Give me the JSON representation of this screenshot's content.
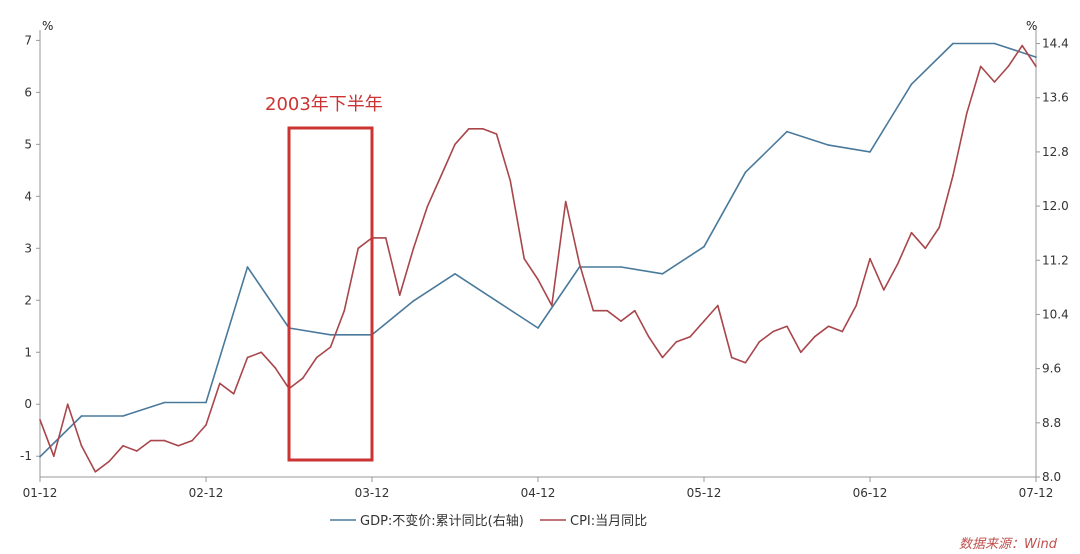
{
  "chart_data": {
    "type": "line",
    "x": [
      "01-12",
      "02-01",
      "02-02",
      "02-03",
      "02-04",
      "02-05",
      "02-06",
      "02-07",
      "02-08",
      "02-09",
      "02-10",
      "02-11",
      "02-12",
      "03-01",
      "03-02",
      "03-03",
      "03-04",
      "03-05",
      "03-06",
      "03-07",
      "03-08",
      "03-09",
      "03-10",
      "03-11",
      "03-12",
      "04-01",
      "04-02",
      "04-03",
      "04-04",
      "04-05",
      "04-06",
      "04-07",
      "04-08",
      "04-09",
      "04-10",
      "04-11",
      "04-12",
      "05-01",
      "05-02",
      "05-03",
      "05-04",
      "05-05",
      "05-06",
      "05-07",
      "05-08",
      "05-09",
      "05-10",
      "05-11",
      "05-12",
      "06-01",
      "06-02",
      "06-03",
      "06-04",
      "06-05",
      "06-06",
      "06-07",
      "06-08",
      "06-09",
      "06-10",
      "06-11",
      "06-12",
      "07-01",
      "07-02",
      "07-03",
      "07-04",
      "07-05",
      "07-06",
      "07-07",
      "07-08",
      "07-09",
      "07-10",
      "07-11",
      "07-12"
    ],
    "x_tick_labels": [
      "01-12",
      "02-12",
      "03-12",
      "04-12",
      "05-12",
      "06-12",
      "07-12"
    ],
    "left_axis": {
      "unit": "%",
      "ticks": [
        "-1",
        "0",
        "1",
        "2",
        "3",
        "4",
        "5",
        "6",
        "7"
      ],
      "range": [
        -1.4,
        7.2
      ]
    },
    "right_axis": {
      "unit": "%",
      "ticks": [
        "8.0",
        "8.8",
        "9.6",
        "10.4",
        "11.2",
        "12.0",
        "12.8",
        "13.6",
        "14.4"
      ],
      "range": [
        8.0,
        14.6
      ]
    },
    "series": [
      {
        "name": "GDP:不变价:累计同比(右轴)",
        "axis": "right",
        "color": "#4a7a9b",
        "points": [
          [
            "01-12",
            8.3
          ],
          [
            "02-03",
            8.9
          ],
          [
            "02-06",
            8.9
          ],
          [
            "02-09",
            9.1
          ],
          [
            "02-12",
            9.1
          ],
          [
            "03-03",
            11.1
          ],
          [
            "03-06",
            10.2
          ],
          [
            "03-09",
            10.1
          ],
          [
            "03-12",
            10.1
          ],
          [
            "04-03",
            10.6
          ],
          [
            "04-06",
            11.0
          ],
          [
            "04-09",
            10.6
          ],
          [
            "04-12",
            10.2
          ],
          [
            "05-03",
            11.1
          ],
          [
            "05-06",
            11.1
          ],
          [
            "05-09",
            11.0
          ],
          [
            "05-12",
            11.4
          ],
          [
            "06-03",
            12.5
          ],
          [
            "06-06",
            13.1
          ],
          [
            "06-09",
            12.9
          ],
          [
            "06-12",
            12.8
          ],
          [
            "07-03",
            13.8
          ],
          [
            "07-06",
            14.4
          ],
          [
            "07-09",
            14.4
          ],
          [
            "07-12",
            14.2
          ]
        ]
      },
      {
        "name": "CPI:当月同比",
        "axis": "left",
        "color": "#a8464b",
        "points": [
          [
            "01-12",
            -0.3
          ],
          [
            "02-01",
            -1.0
          ],
          [
            "02-02",
            0.0
          ],
          [
            "02-03",
            -0.8
          ],
          [
            "02-04",
            -1.3
          ],
          [
            "02-05",
            -1.1
          ],
          [
            "02-06",
            -0.8
          ],
          [
            "02-07",
            -0.9
          ],
          [
            "02-08",
            -0.7
          ],
          [
            "02-09",
            -0.7
          ],
          [
            "02-10",
            -0.8
          ],
          [
            "02-11",
            -0.7
          ],
          [
            "02-12",
            -0.4
          ],
          [
            "03-01",
            0.4
          ],
          [
            "03-02",
            0.2
          ],
          [
            "03-03",
            0.9
          ],
          [
            "03-04",
            1.0
          ],
          [
            "03-05",
            0.7
          ],
          [
            "03-06",
            0.3
          ],
          [
            "03-07",
            0.5
          ],
          [
            "03-08",
            0.9
          ],
          [
            "03-09",
            1.1
          ],
          [
            "03-10",
            1.8
          ],
          [
            "03-11",
            3.0
          ],
          [
            "03-12",
            3.2
          ],
          [
            "04-01",
            3.2
          ],
          [
            "04-02",
            2.1
          ],
          [
            "04-03",
            3.0
          ],
          [
            "04-04",
            3.8
          ],
          [
            "04-05",
            4.4
          ],
          [
            "04-06",
            5.0
          ],
          [
            "04-07",
            5.3
          ],
          [
            "04-08",
            5.3
          ],
          [
            "04-09",
            5.2
          ],
          [
            "04-10",
            4.3
          ],
          [
            "04-11",
            2.8
          ],
          [
            "04-12",
            2.4
          ],
          [
            "05-01",
            1.9
          ],
          [
            "05-02",
            3.9
          ],
          [
            "05-03",
            2.7
          ],
          [
            "05-04",
            1.8
          ],
          [
            "05-05",
            1.8
          ],
          [
            "05-06",
            1.6
          ],
          [
            "05-07",
            1.8
          ],
          [
            "05-08",
            1.3
          ],
          [
            "05-09",
            0.9
          ],
          [
            "05-10",
            1.2
          ],
          [
            "05-11",
            1.3
          ],
          [
            "05-12",
            1.6
          ],
          [
            "06-01",
            1.9
          ],
          [
            "06-02",
            0.9
          ],
          [
            "06-03",
            0.8
          ],
          [
            "06-04",
            1.2
          ],
          [
            "06-05",
            1.4
          ],
          [
            "06-06",
            1.5
          ],
          [
            "06-07",
            1.0
          ],
          [
            "06-08",
            1.3
          ],
          [
            "06-09",
            1.5
          ],
          [
            "06-10",
            1.4
          ],
          [
            "06-11",
            1.9
          ],
          [
            "06-12",
            2.8
          ],
          [
            "07-01",
            2.2
          ],
          [
            "07-02",
            2.7
          ],
          [
            "07-03",
            3.3
          ],
          [
            "07-04",
            3.0
          ],
          [
            "07-05",
            3.4
          ],
          [
            "07-06",
            4.4
          ],
          [
            "07-07",
            5.6
          ],
          [
            "07-08",
            6.5
          ],
          [
            "07-09",
            6.2
          ],
          [
            "07-10",
            6.5
          ],
          [
            "07-11",
            6.9
          ],
          [
            "07-12",
            6.5
          ]
        ]
      }
    ],
    "annotation": {
      "text": "2003年下半年",
      "from": "03-06",
      "to": "03-12",
      "color": "#cc3333"
    },
    "legend_placement": "bottom",
    "grid": false
  },
  "source": "数据来源：Wind"
}
